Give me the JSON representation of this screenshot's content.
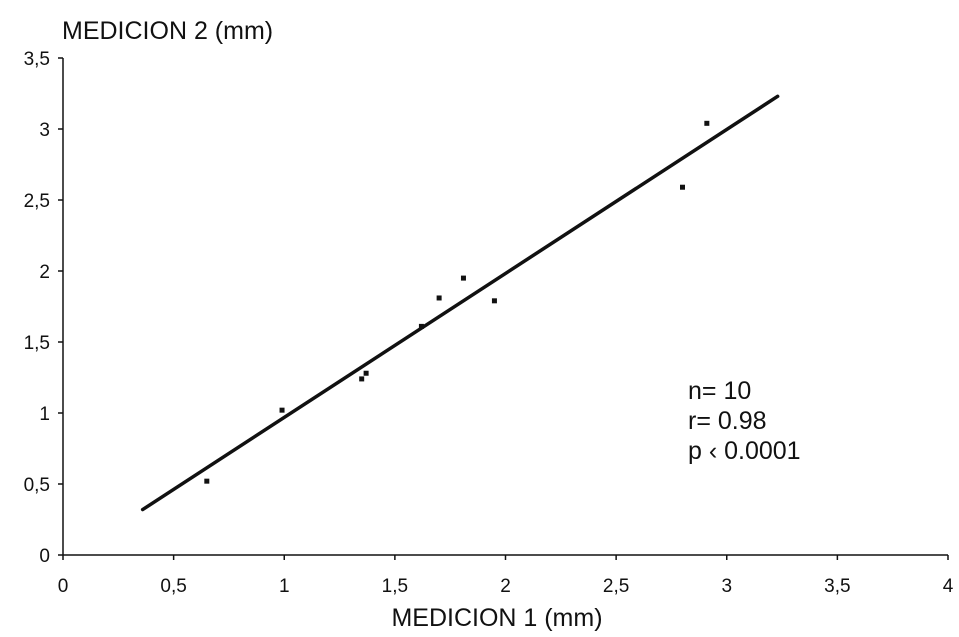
{
  "chart_data": {
    "type": "scatter",
    "title": "",
    "ylabel": "MEDICION 2 (mm)",
    "xlabel": "MEDICION 1 (mm)",
    "xlim": [
      0,
      4
    ],
    "ylim": [
      0,
      3.5
    ],
    "x_ticks": [
      "0",
      "0,5",
      "1",
      "1,5",
      "2",
      "2,5",
      "3",
      "3,5",
      "4"
    ],
    "y_ticks": [
      "0",
      "0,5",
      "1",
      "1,5",
      "2",
      "2,5",
      "3",
      "3,5"
    ],
    "grid": false,
    "points": [
      {
        "x": 0.65,
        "y": 0.52
      },
      {
        "x": 0.99,
        "y": 1.02
      },
      {
        "x": 1.35,
        "y": 1.24
      },
      {
        "x": 1.37,
        "y": 1.28
      },
      {
        "x": 1.62,
        "y": 1.61
      },
      {
        "x": 1.7,
        "y": 1.81
      },
      {
        "x": 1.81,
        "y": 1.95
      },
      {
        "x": 1.95,
        "y": 1.79
      },
      {
        "x": 2.8,
        "y": 2.59
      },
      {
        "x": 2.91,
        "y": 3.04
      }
    ],
    "regression_line": {
      "x_start": 0.36,
      "y_start": 0.32,
      "x_end": 3.23,
      "y_end": 3.23
    },
    "stats": [
      "n= 10",
      "r= 0.98",
      "p ‹ 0.0001"
    ]
  }
}
